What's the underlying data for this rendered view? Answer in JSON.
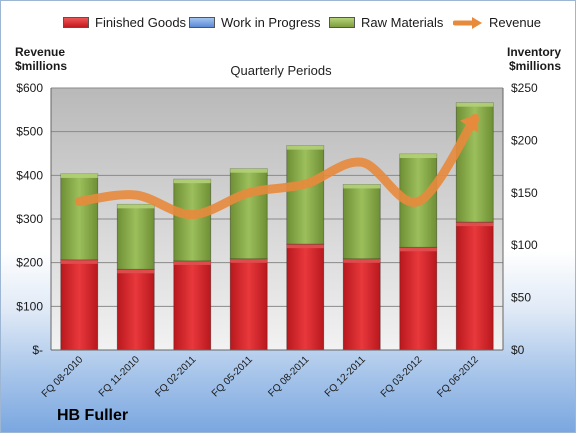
{
  "brand": "HB Fuller",
  "chart_data": {
    "type": "bar",
    "subtitle": "Quarterly Periods",
    "left_axis_title": [
      "Revenue",
      "$millions"
    ],
    "right_axis_title": [
      "Inventory",
      "$millions"
    ],
    "categories": [
      "FQ 08-2010",
      "FQ 11-2010",
      "FQ 02-2011",
      "FQ 05-2011",
      "FQ 08-2011",
      "FQ 12-2011",
      "FQ 03-2012",
      "FQ 06-2012"
    ],
    "left_axis": {
      "min": 0,
      "max": 600,
      "step": 100,
      "tick_labels": [
        "$-",
        "$100",
        "$200",
        "$300",
        "$400",
        "$500",
        "$600"
      ]
    },
    "right_axis": {
      "min": 0,
      "max": 250,
      "step": 50,
      "tick_labels": [
        "$0",
        "$50",
        "$100",
        "$150",
        "$200",
        "$250"
      ]
    },
    "stacked": true,
    "series": [
      {
        "name": "Finished Goods",
        "axis": "right",
        "kind": "bar",
        "color": "#d9262b",
        "values": [
          86,
          77,
          85,
          87,
          101,
          87,
          98,
          122
        ]
      },
      {
        "name": "Work in Progress",
        "axis": "right",
        "kind": "bar",
        "color": "#6f9ee0",
        "values": [
          0,
          0,
          0,
          0,
          0,
          0,
          0,
          0
        ]
      },
      {
        "name": "Raw Materials",
        "axis": "right",
        "kind": "bar",
        "color": "#8db04e",
        "values": [
          82,
          62,
          78,
          86,
          94,
          71,
          89,
          114
        ]
      },
      {
        "name": "Revenue",
        "axis": "left",
        "kind": "line",
        "color": "#e88a3c",
        "values": [
          340,
          355,
          310,
          360,
          380,
          430,
          340,
          530
        ]
      }
    ],
    "grid": true,
    "legend_position": "top"
  }
}
